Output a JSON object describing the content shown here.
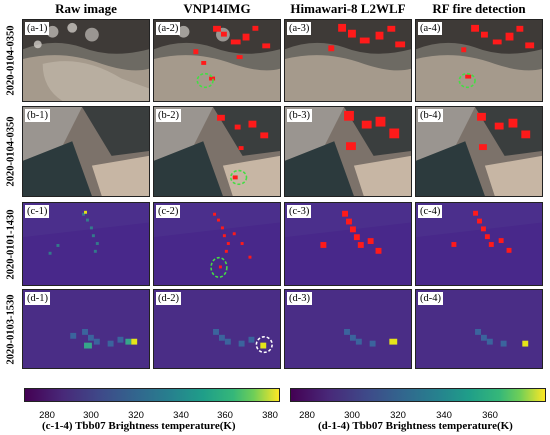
{
  "columns": [
    "Raw image",
    "VNP14IMG",
    "Himawari-8 L2WLF",
    "RF fire detection"
  ],
  "rows": [
    {
      "date": "2020-0104-0350",
      "panels": [
        "(a-1)",
        "(a-2)",
        "(a-3)",
        "(a-4)"
      ]
    },
    {
      "date": "2020-0104-0350",
      "panels": [
        "(b-1)",
        "(b-2)",
        "(b-3)",
        "(b-4)"
      ]
    },
    {
      "date": "2020-0101-1430",
      "panels": [
        "(c-1)",
        "(c-2)",
        "(c-3)",
        "(c-4)"
      ]
    },
    {
      "date": "2020-0103-1530",
      "panels": [
        "(d-1)",
        "(d-2)",
        "(d-3)",
        "(d-4)"
      ]
    }
  ],
  "colorbars": [
    {
      "title": "(c-1-4) Tbb07 Brightness temperature(K)",
      "ticks": [
        "280",
        "300",
        "320",
        "340",
        "360",
        "380"
      ]
    },
    {
      "title": "(d-1-4) Tbb07 Brightness temperature(K)",
      "ticks": [
        "280",
        "300",
        "320",
        "340",
        "360"
      ]
    }
  ],
  "colors": {
    "fire": "#ff1a1a",
    "circle_green": "#44dd44",
    "circle_white": "#ffffff",
    "background_purple": "#4a2d86"
  }
}
